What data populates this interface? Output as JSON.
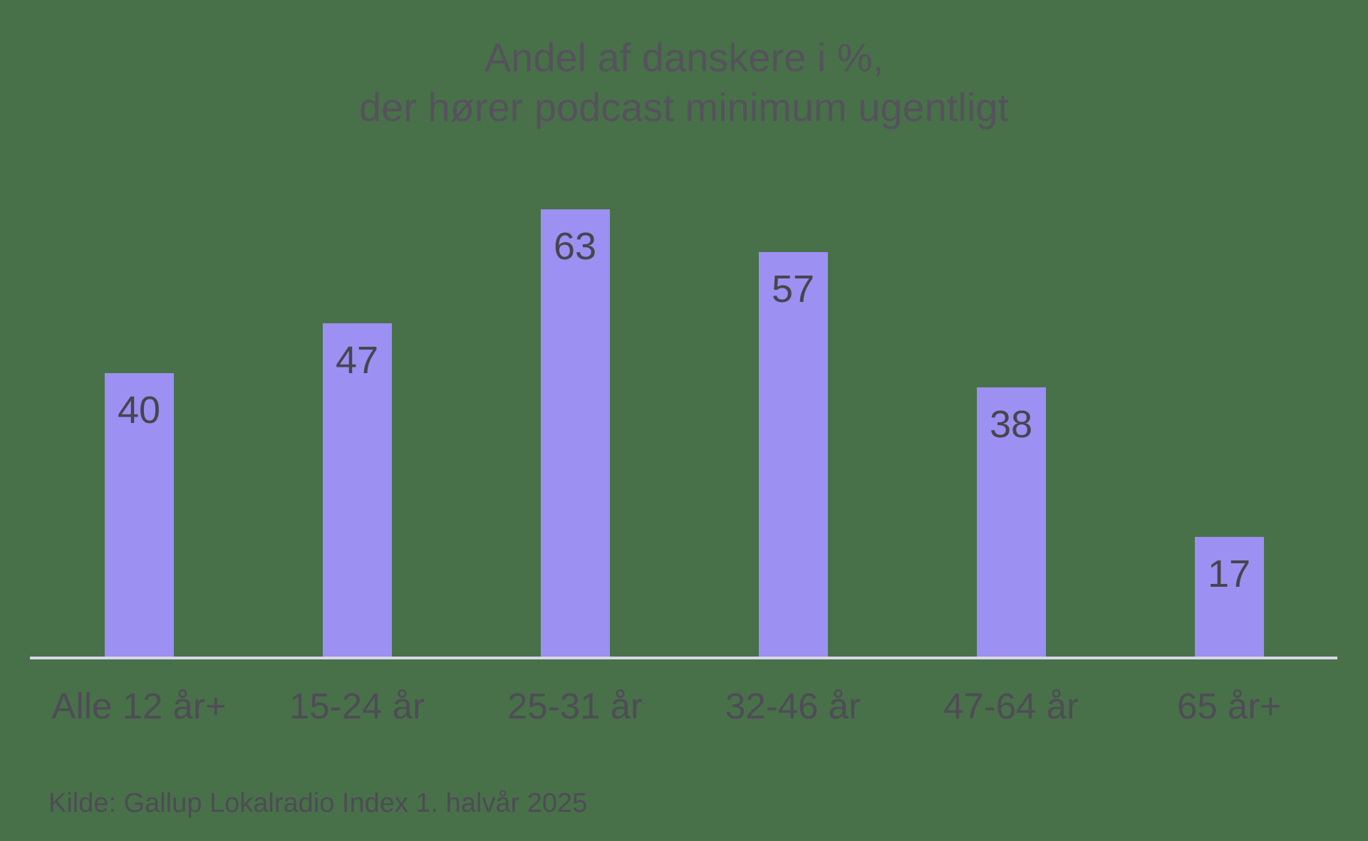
{
  "title": {
    "line1": "Andel af danskere i %,",
    "line2": "der hører podcast minimum ugentligt"
  },
  "source": "Kilde: Gallup Lokalradio Index 1. halvår 2025",
  "colors": {
    "background": "#487149",
    "bar": "#9c90f2",
    "axis_line": "#dad6e8",
    "title_text": "#55525c",
    "label_text": "#4f4c56",
    "value_text": "#47454e",
    "source_text": "#4e4b55"
  },
  "chart_data": {
    "type": "bar",
    "title": "Andel af danskere i %, der hører podcast minimum ugentligt",
    "categories": [
      "Alle 12 år+",
      "15-24 år",
      "25-31 år",
      "32-46 år",
      "47-64 år",
      "65 år+"
    ],
    "values": [
      40,
      47,
      63,
      57,
      38,
      17
    ],
    "xlabel": "",
    "ylabel": "",
    "ylim": [
      0,
      70
    ],
    "grid": false,
    "legend": false,
    "value_labels": "inside-top",
    "y_axis_visible": false,
    "source": "Kilde: Gallup Lokalradio Index 1. halvår 2025"
  }
}
